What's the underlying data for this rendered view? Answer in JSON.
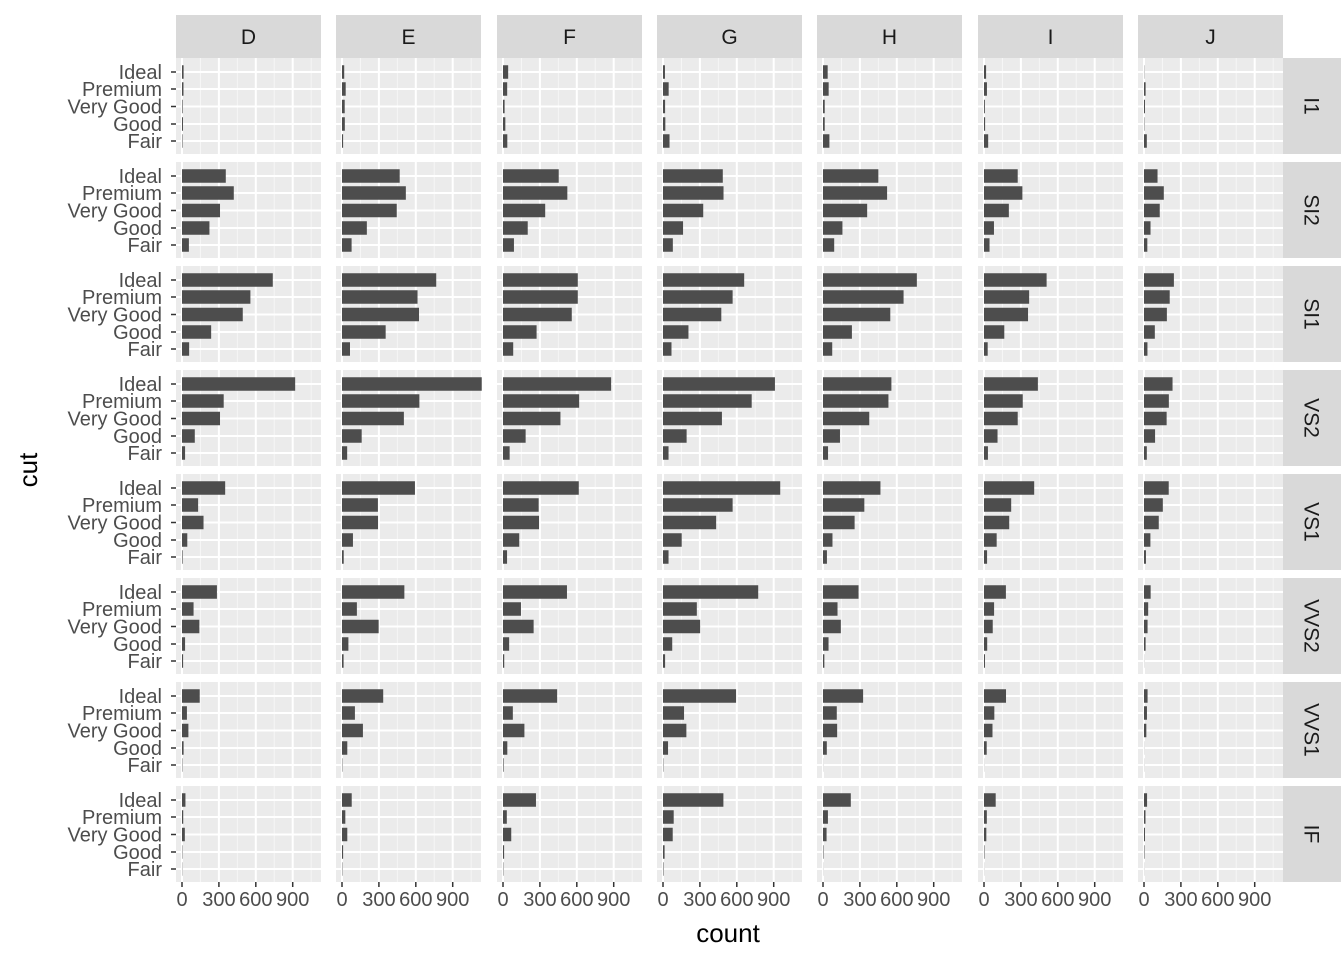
{
  "chart_data": {
    "type": "bar",
    "orientation": "horizontal",
    "facet_layout": "grid",
    "xlabel": "count",
    "ylabel": "cut",
    "xlim": [
      0,
      1130
    ],
    "x_ticks": [
      0,
      300,
      600,
      900
    ],
    "x_tick_labels": [
      "0",
      "300",
      "600",
      "900"
    ],
    "grid": true,
    "legend": "none",
    "colors": {
      "bar": "#4d4d4d",
      "panel_background": "#ebebeb",
      "grid_major": "#ffffff",
      "strip_background": "#d9d9d9",
      "axis_text": "#4d4d4d"
    },
    "categories": [
      "Ideal",
      "Premium",
      "Very Good",
      "Good",
      "Fair"
    ],
    "columns": [
      "D",
      "E",
      "F",
      "G",
      "H",
      "I",
      "J"
    ],
    "rows": [
      "I1",
      "SI2",
      "SI1",
      "VS2",
      "VS1",
      "VVS2",
      "VVS1",
      "IF"
    ],
    "values": {
      "I1": {
        "D": [
          13,
          12,
          5,
          8,
          4
        ],
        "E": [
          18,
          30,
          22,
          23,
          9
        ],
        "F": [
          42,
          34,
          13,
          19,
          35
        ],
        "G": [
          16,
          46,
          17,
          19,
          53
        ],
        "H": [
          38,
          46,
          14,
          14,
          52
        ],
        "I": [
          17,
          24,
          7,
          9,
          34
        ],
        "J": [
          2,
          13,
          8,
          3,
          23
        ]
      },
      "SI2": {
        "D": [
          356,
          421,
          309,
          223,
          56
        ],
        "E": [
          469,
          519,
          445,
          202,
          78
        ],
        "F": [
          453,
          523,
          343,
          201,
          89
        ],
        "G": [
          486,
          492,
          327,
          163,
          80
        ],
        "H": [
          450,
          521,
          359,
          158,
          91
        ],
        "I": [
          274,
          312,
          202,
          81,
          45
        ],
        "J": [
          110,
          161,
          128,
          53,
          27
        ]
      },
      "SI1": {
        "D": [
          738,
          556,
          494,
          237,
          58
        ],
        "E": [
          766,
          614,
          626,
          355,
          65
        ],
        "F": [
          608,
          608,
          559,
          273,
          83
        ],
        "G": [
          660,
          566,
          474,
          207,
          69
        ],
        "H": [
          763,
          655,
          547,
          235,
          75
        ],
        "I": [
          509,
          367,
          358,
          165,
          30
        ],
        "J": [
          243,
          209,
          186,
          88,
          28
        ]
      },
      "VS2": {
        "D": [
          920,
          339,
          309,
          104,
          25
        ],
        "E": [
          1136,
          629,
          503,
          160,
          42
        ],
        "F": [
          879,
          619,
          467,
          184,
          54
        ],
        "G": [
          910,
          721,
          479,
          192,
          45
        ],
        "H": [
          556,
          532,
          376,
          138,
          41
        ],
        "I": [
          438,
          315,
          274,
          110,
          32
        ],
        "J": [
          232,
          202,
          184,
          90,
          23
        ]
      },
      "VS1": {
        "D": [
          351,
          131,
          175,
          43,
          5
        ],
        "E": [
          593,
          292,
          293,
          89,
          14
        ],
        "F": [
          616,
          290,
          293,
          132,
          33
        ],
        "G": [
          953,
          566,
          432,
          152,
          45
        ],
        "H": [
          467,
          336,
          257,
          77,
          32
        ],
        "I": [
          408,
          221,
          205,
          103,
          25
        ],
        "J": [
          201,
          153,
          120,
          52,
          16
        ]
      },
      "VVS2": {
        "D": [
          284,
          94,
          141,
          25,
          9
        ],
        "E": [
          507,
          121,
          298,
          52,
          13
        ],
        "F": [
          520,
          146,
          249,
          50,
          10
        ],
        "G": [
          774,
          275,
          302,
          75,
          17
        ],
        "H": [
          289,
          118,
          145,
          45,
          11
        ],
        "I": [
          178,
          82,
          71,
          26,
          8
        ],
        "J": [
          54,
          34,
          29,
          13,
          1
        ]
      },
      "VVS1": {
        "D": [
          144,
          40,
          52,
          13,
          3
        ],
        "E": [
          335,
          105,
          170,
          43,
          3
        ],
        "F": [
          440,
          80,
          174,
          35,
          5
        ],
        "G": [
          594,
          171,
          190,
          41,
          3
        ],
        "H": [
          326,
          112,
          115,
          31,
          1
        ],
        "I": [
          179,
          84,
          69,
          22,
          1
        ],
        "J": [
          29,
          24,
          19,
          1,
          1
        ]
      },
      "IF": {
        "D": [
          28,
          10,
          23,
          3,
          2
        ],
        "E": [
          79,
          27,
          43,
          9,
          3
        ],
        "F": [
          268,
          31,
          67,
          9,
          3
        ],
        "G": [
          491,
          87,
          79,
          13,
          4
        ],
        "H": [
          226,
          40,
          29,
          4,
          1
        ],
        "I": [
          95,
          23,
          19,
          4,
          1
        ],
        "J": [
          25,
          12,
          8,
          4,
          1
        ]
      }
    }
  }
}
